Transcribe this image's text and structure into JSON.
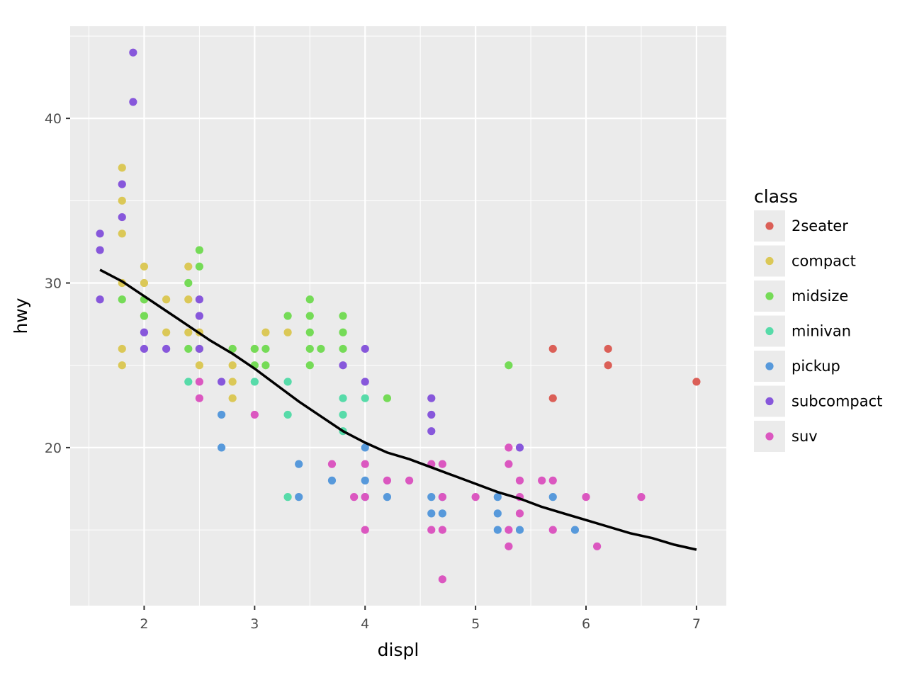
{
  "chart_data": {
    "type": "scatter",
    "xlabel": "displ",
    "ylabel": "hwy",
    "xlim": [
      1.33,
      7.27
    ],
    "ylim": [
      10.4,
      45.6
    ],
    "x_ticks": [
      2,
      3,
      4,
      5,
      6,
      7
    ],
    "y_ticks": [
      20,
      30,
      40
    ],
    "grid": true,
    "legend": {
      "title": "class",
      "placement": "right",
      "entries": [
        "2seater",
        "compact",
        "midsize",
        "minivan",
        "pickup",
        "subcompact",
        "suv"
      ]
    },
    "series": [
      {
        "name": "2seater",
        "color": "#DB5F57",
        "points": [
          [
            5.7,
            26
          ],
          [
            5.7,
            23
          ],
          [
            6.2,
            26
          ],
          [
            6.2,
            25
          ],
          [
            7.0,
            24
          ]
        ]
      },
      {
        "name": "compact",
        "color": "#DBC857",
        "points": [
          [
            1.8,
            37
          ],
          [
            1.8,
            35
          ],
          [
            1.8,
            33
          ],
          [
            1.8,
            30
          ],
          [
            1.8,
            26
          ],
          [
            1.8,
            25
          ],
          [
            2.0,
            31
          ],
          [
            2.0,
            30
          ],
          [
            2.0,
            28
          ],
          [
            2.0,
            29
          ],
          [
            2.2,
            29
          ],
          [
            2.2,
            27
          ],
          [
            2.4,
            31
          ],
          [
            2.4,
            29
          ],
          [
            2.4,
            27
          ],
          [
            2.5,
            27
          ],
          [
            2.5,
            25
          ],
          [
            2.8,
            26
          ],
          [
            2.8,
            25
          ],
          [
            2.8,
            24
          ],
          [
            2.8,
            23
          ],
          [
            3.0,
            26
          ],
          [
            3.1,
            27
          ],
          [
            3.3,
            27
          ]
        ]
      },
      {
        "name": "midsize",
        "color": "#75DB57",
        "points": [
          [
            1.8,
            29
          ],
          [
            2.0,
            29
          ],
          [
            2.0,
            28
          ],
          [
            2.4,
            30
          ],
          [
            2.4,
            26
          ],
          [
            2.5,
            32
          ],
          [
            2.5,
            31
          ],
          [
            2.5,
            26
          ],
          [
            2.8,
            26
          ],
          [
            3.0,
            26
          ],
          [
            3.0,
            25
          ],
          [
            3.1,
            26
          ],
          [
            3.1,
            25
          ],
          [
            3.3,
            28
          ],
          [
            3.5,
            29
          ],
          [
            3.5,
            28
          ],
          [
            3.5,
            27
          ],
          [
            3.5,
            26
          ],
          [
            3.5,
            25
          ],
          [
            3.6,
            26
          ],
          [
            3.8,
            28
          ],
          [
            3.8,
            27
          ],
          [
            3.8,
            26
          ],
          [
            4.2,
            23
          ],
          [
            5.3,
            25
          ]
        ]
      },
      {
        "name": "minivan",
        "color": "#57DBA9",
        "points": [
          [
            2.4,
            24
          ],
          [
            3.0,
            24
          ],
          [
            3.3,
            24
          ],
          [
            3.3,
            22
          ],
          [
            3.3,
            17
          ],
          [
            3.8,
            23
          ],
          [
            3.8,
            22
          ],
          [
            3.8,
            21
          ],
          [
            4.0,
            23
          ]
        ]
      },
      {
        "name": "pickup",
        "color": "#5799DB",
        "points": [
          [
            2.7,
            22
          ],
          [
            2.7,
            20
          ],
          [
            3.4,
            19
          ],
          [
            3.4,
            17
          ],
          [
            3.7,
            18
          ],
          [
            4.0,
            20
          ],
          [
            4.0,
            18
          ],
          [
            4.0,
            17
          ],
          [
            4.2,
            17
          ],
          [
            4.6,
            17
          ],
          [
            4.6,
            16
          ],
          [
            4.7,
            17
          ],
          [
            4.7,
            16
          ],
          [
            5.2,
            17
          ],
          [
            5.2,
            16
          ],
          [
            5.2,
            15
          ],
          [
            5.4,
            15
          ],
          [
            5.7,
            17
          ],
          [
            5.9,
            15
          ]
        ]
      },
      {
        "name": "subcompact",
        "color": "#8757DB",
        "points": [
          [
            1.6,
            33
          ],
          [
            1.6,
            32
          ],
          [
            1.6,
            29
          ],
          [
            1.8,
            36
          ],
          [
            1.8,
            34
          ],
          [
            1.9,
            44
          ],
          [
            1.9,
            41
          ],
          [
            2.0,
            27
          ],
          [
            2.0,
            26
          ],
          [
            2.2,
            26
          ],
          [
            2.5,
            29
          ],
          [
            2.5,
            28
          ],
          [
            2.5,
            26
          ],
          [
            2.7,
            24
          ],
          [
            3.8,
            25
          ],
          [
            4.0,
            26
          ],
          [
            4.0,
            24
          ],
          [
            4.6,
            23
          ],
          [
            4.6,
            22
          ],
          [
            4.6,
            21
          ],
          [
            5.4,
            20
          ]
        ]
      },
      {
        "name": "suv",
        "color": "#DB57C0",
        "points": [
          [
            2.5,
            24
          ],
          [
            2.5,
            23
          ],
          [
            3.0,
            22
          ],
          [
            3.7,
            19
          ],
          [
            3.9,
            17
          ],
          [
            4.0,
            19
          ],
          [
            4.0,
            17
          ],
          [
            4.0,
            15
          ],
          [
            4.2,
            18
          ],
          [
            4.4,
            18
          ],
          [
            4.6,
            19
          ],
          [
            4.6,
            15
          ],
          [
            4.7,
            19
          ],
          [
            4.7,
            17
          ],
          [
            4.7,
            15
          ],
          [
            4.7,
            12
          ],
          [
            5.0,
            17
          ],
          [
            5.3,
            20
          ],
          [
            5.3,
            19
          ],
          [
            5.3,
            15
          ],
          [
            5.3,
            14
          ],
          [
            5.4,
            18
          ],
          [
            5.4,
            17
          ],
          [
            5.4,
            16
          ],
          [
            5.6,
            18
          ],
          [
            5.7,
            18
          ],
          [
            5.7,
            15
          ],
          [
            6.0,
            17
          ],
          [
            6.1,
            14
          ],
          [
            6.5,
            17
          ]
        ]
      }
    ],
    "smooth": {
      "color": "#000000",
      "points": [
        [
          1.6,
          30.8
        ],
        [
          1.8,
          30.1
        ],
        [
          2.0,
          29.2
        ],
        [
          2.2,
          28.3
        ],
        [
          2.4,
          27.4
        ],
        [
          2.6,
          26.5
        ],
        [
          2.8,
          25.7
        ],
        [
          3.0,
          24.8
        ],
        [
          3.2,
          23.8
        ],
        [
          3.4,
          22.8
        ],
        [
          3.6,
          21.9
        ],
        [
          3.8,
          21.0
        ],
        [
          4.0,
          20.3
        ],
        [
          4.2,
          19.7
        ],
        [
          4.4,
          19.3
        ],
        [
          4.6,
          18.8
        ],
        [
          4.8,
          18.3
        ],
        [
          5.0,
          17.8
        ],
        [
          5.2,
          17.3
        ],
        [
          5.4,
          16.9
        ],
        [
          5.6,
          16.4
        ],
        [
          5.8,
          16.0
        ],
        [
          6.0,
          15.6
        ],
        [
          6.2,
          15.2
        ],
        [
          6.4,
          14.8
        ],
        [
          6.6,
          14.5
        ],
        [
          6.8,
          14.1
        ],
        [
          7.0,
          13.8
        ]
      ]
    }
  }
}
